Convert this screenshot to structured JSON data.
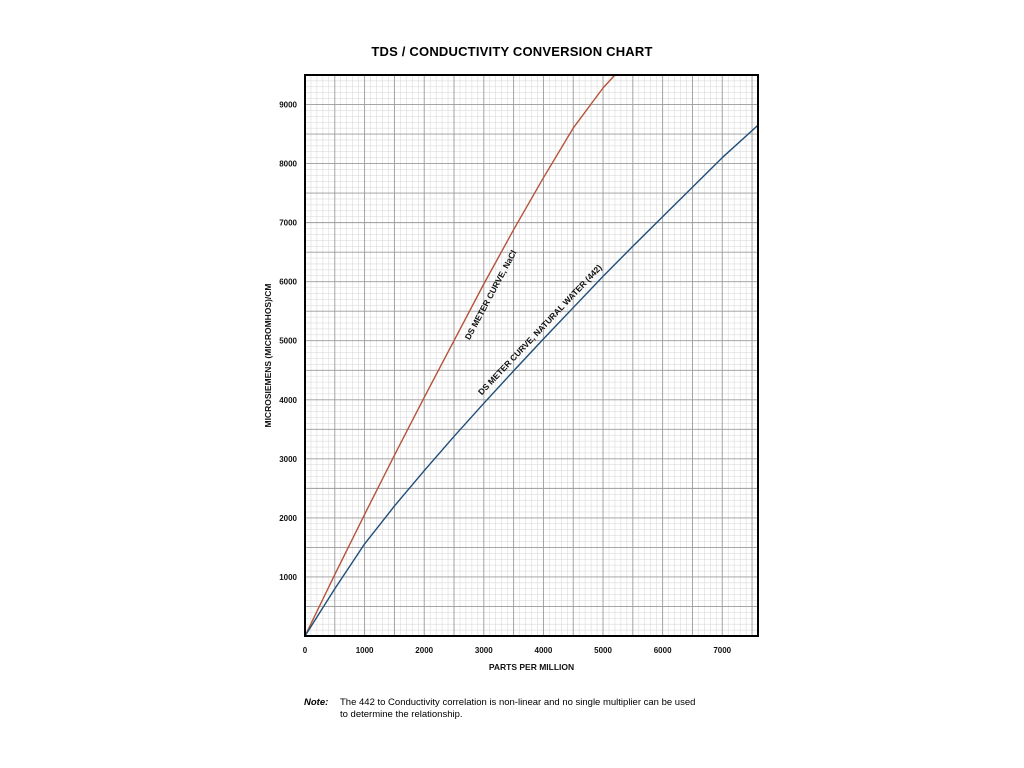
{
  "chart_data": {
    "type": "line",
    "title": "TDS / CONDUCTIVITY CONVERSION CHART",
    "xlabel": "PARTS  PER  MILLION",
    "ylabel": "MICROSIEMENS (MICROMHOS)/CM",
    "xlim": [
      0,
      7600
    ],
    "ylim": [
      0,
      9500
    ],
    "xticks": [
      0,
      1000,
      2000,
      3000,
      4000,
      5000,
      6000,
      7000
    ],
    "yticks": [
      1000,
      2000,
      3000,
      4000,
      5000,
      6000,
      7000,
      8000,
      9000
    ],
    "grid": true,
    "series": [
      {
        "name": "DS METER CURVE, NaCl",
        "color": "#b5533a",
        "x": [
          0,
          500,
          1000,
          1500,
          2000,
          2500,
          3000,
          3500,
          4000,
          4500,
          5000,
          5200
        ],
        "y": [
          0,
          1040,
          2060,
          3060,
          4040,
          5000,
          5960,
          6880,
          7760,
          8600,
          9280,
          9500
        ]
      },
      {
        "name": "DS METER CURVE, NATURAL WATER (442)",
        "color": "#1f4e79",
        "x": [
          0,
          500,
          1000,
          1500,
          2000,
          2500,
          3000,
          3500,
          4000,
          4500,
          5000,
          5500,
          6000,
          6500,
          7000,
          7600
        ],
        "y": [
          0,
          800,
          1560,
          2200,
          2800,
          3380,
          3940,
          4490,
          5030,
          5560,
          6090,
          6600,
          7100,
          7600,
          8100,
          8650
        ]
      }
    ]
  },
  "note": {
    "label": "Note:",
    "text_line1": "The 442 to Conductivity correlation is non-linear and no single multiplier can be used",
    "text_line2": "to determine the relationship."
  }
}
